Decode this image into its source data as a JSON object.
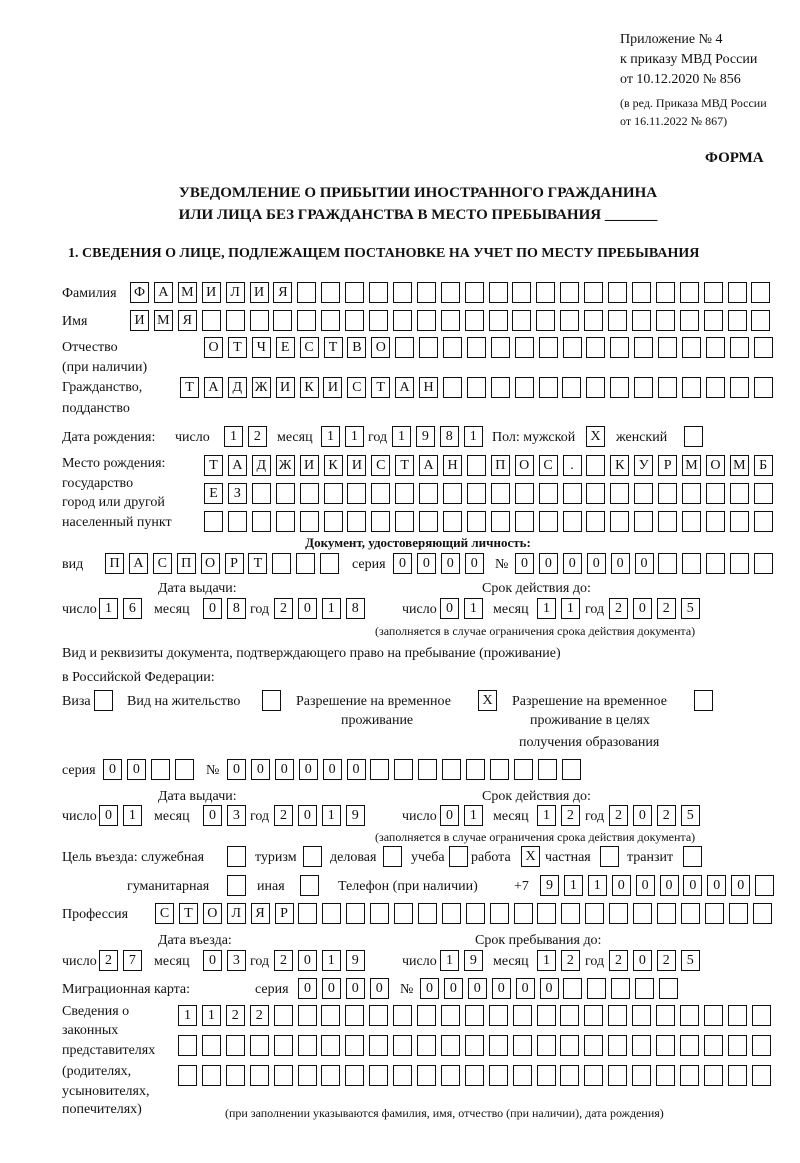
{
  "header": {
    "appendix": "Приложение № 4",
    "order": "к приказу МВД России",
    "order_date": "от 10.12.2020 № 856",
    "revision1": "(в ред. Приказа МВД России",
    "revision2": "от 16.11.2022 № 867)",
    "form_label": "ФОРМА",
    "title1": "УВЕДОМЛЕНИЕ О ПРИБЫТИИ ИНОСТРАННОГО ГРАЖДАНИНА",
    "title2": "ИЛИ ЛИЦА БЕЗ ГРАЖДАНСТВА В МЕСТО ПРЕБЫВАНИЯ _______"
  },
  "section1": {
    "heading": "1. СВЕДЕНИЯ О ЛИЦЕ, ПОДЛЕЖАЩЕМ ПОСТАНОВКЕ НА УЧЕТ ПО МЕСТУ ПРЕБЫВАНИЯ",
    "surname": {
      "label": "Фамилия",
      "cells": [
        "Ф",
        "А",
        "М",
        "И",
        "Л",
        "И",
        "Я",
        "",
        "",
        "",
        "",
        "",
        "",
        "",
        "",
        "",
        "",
        "",
        "",
        "",
        "",
        "",
        "",
        "",
        "",
        "",
        ""
      ]
    },
    "name": {
      "label": "Имя",
      "cells": [
        "И",
        "М",
        "Я",
        "",
        "",
        "",
        "",
        "",
        "",
        "",
        "",
        "",
        "",
        "",
        "",
        "",
        "",
        "",
        "",
        "",
        "",
        "",
        "",
        "",
        "",
        "",
        ""
      ]
    },
    "patronymic": {
      "label": "Отчество",
      "label2": "(при наличии)",
      "cells": [
        "О",
        "Т",
        "Ч",
        "Е",
        "С",
        "Т",
        "В",
        "О",
        "",
        "",
        "",
        "",
        "",
        "",
        "",
        "",
        "",
        "",
        "",
        "",
        "",
        "",
        "",
        ""
      ]
    },
    "citizenship": {
      "label": "Гражданство,",
      "label2": "подданство",
      "cells": [
        "Т",
        "А",
        "Д",
        "Ж",
        "И",
        "К",
        "И",
        "С",
        "Т",
        "А",
        "Н",
        "",
        "",
        "",
        "",
        "",
        "",
        "",
        "",
        "",
        "",
        "",
        "",
        "",
        ""
      ]
    },
    "birth_date": {
      "label": "Дата рождения:",
      "day_label": "число",
      "day": [
        "1",
        "2"
      ],
      "month_label": "месяц",
      "month": [
        "1",
        "1"
      ],
      "year_label": "год",
      "year": [
        "1",
        "9",
        "8",
        "1"
      ],
      "sex_label": "Пол: мужской",
      "male": [
        "X"
      ],
      "female_label": "женский",
      "female": [
        ""
      ]
    },
    "birth_place": {
      "label1": "Место рождения:",
      "label2": "государство",
      "label3": "город или другой",
      "label4": "населенный пункт",
      "row1": [
        "Т",
        "А",
        "Д",
        "Ж",
        "И",
        "К",
        "И",
        "С",
        "Т",
        "А",
        "Н",
        "",
        "П",
        "О",
        "С",
        ".",
        "",
        "К",
        "У",
        "Р",
        "М",
        "О",
        "М",
        "Б"
      ],
      "row2": [
        "Е",
        "З",
        "",
        "",
        "",
        "",
        "",
        "",
        "",
        "",
        "",
        "",
        "",
        "",
        "",
        "",
        "",
        "",
        "",
        "",
        "",
        "",
        "",
        ""
      ],
      "row3": [
        "",
        "",
        "",
        "",
        "",
        "",
        "",
        "",
        "",
        "",
        "",
        "",
        "",
        "",
        "",
        "",
        "",
        "",
        "",
        "",
        "",
        "",
        "",
        ""
      ]
    },
    "identity_doc": {
      "heading": "Документ, удостоверяющий личность:",
      "type_label": "вид",
      "type": [
        "П",
        "А",
        "С",
        "П",
        "О",
        "Р",
        "Т",
        "",
        "",
        ""
      ],
      "series_label": "серия",
      "series": [
        "0",
        "0",
        "0",
        "0"
      ],
      "number_label": "№",
      "number": [
        "0",
        "0",
        "0",
        "0",
        "0",
        "0",
        "",
        "",
        "",
        "",
        ""
      ],
      "issue_label": "Дата выдачи:",
      "valid_label": "Срок действия до:",
      "day_label": "число",
      "month_label": "месяц",
      "year_label": "год",
      "issue_day": [
        "1",
        "6"
      ],
      "issue_month": [
        "0",
        "8"
      ],
      "issue_year": [
        "2",
        "0",
        "1",
        "8"
      ],
      "valid_day": [
        "0",
        "1"
      ],
      "valid_month": [
        "1",
        "1"
      ],
      "valid_year": [
        "2",
        "0",
        "2",
        "5"
      ],
      "note": "(заполняется в случае ограничения срока действия документа)"
    },
    "stay_doc": {
      "label1": "Вид и реквизиты документа, подтверждающего право на пребывание (проживание)",
      "label2": "в Российской Федерации:",
      "visa_label": "Виза",
      "visa": [
        ""
      ],
      "residence_label": "Вид на жительство",
      "residence": [
        ""
      ],
      "temp_label1": "Разрешение на временное",
      "temp_label2": "проживание",
      "temp": [
        "X"
      ],
      "edu_label1": "Разрешение на временное",
      "edu_label2": "проживание в целях",
      "edu_label3": "получения образования",
      "edu": [
        ""
      ],
      "series_label": "серия",
      "series": [
        "0",
        "0",
        "",
        ""
      ],
      "number_label": "№",
      "number": [
        "0",
        "0",
        "0",
        "0",
        "0",
        "0",
        "",
        "",
        "",
        "",
        "",
        "",
        "",
        "",
        ""
      ],
      "issue_label": "Дата выдачи:",
      "valid_label": "Срок действия до:",
      "day_label": "число",
      "month_label": "месяц",
      "year_label": "год",
      "issue_day": [
        "0",
        "1"
      ],
      "issue_month": [
        "0",
        "3"
      ],
      "issue_year": [
        "2",
        "0",
        "1",
        "9"
      ],
      "valid_day": [
        "0",
        "1"
      ],
      "valid_month": [
        "1",
        "2"
      ],
      "valid_year": [
        "2",
        "0",
        "2",
        "5"
      ],
      "note": "(заполняется в случае ограничения срока действия документа)"
    },
    "purpose": {
      "label": "Цель въезда: служебная",
      "service": [
        ""
      ],
      "tourism_label": "туризм",
      "tourism": [
        ""
      ],
      "business_label": "деловая",
      "business": [
        ""
      ],
      "study_label": "учеба",
      "study": [
        ""
      ],
      "work_label": "работа",
      "work": [
        "X"
      ],
      "private_label": "частная",
      "private": [
        ""
      ],
      "transit_label": "транзит",
      "transit": [
        ""
      ],
      "humanitarian_label": "гуманитарная",
      "humanitarian": [
        ""
      ],
      "other_label": "иная",
      "other": [
        ""
      ],
      "phone_label": "Телефон (при наличии)",
      "phone_prefix": "+7",
      "phone": [
        "9",
        "1",
        "1",
        "0",
        "0",
        "0",
        "0",
        "0",
        "0",
        ""
      ]
    },
    "profession": {
      "label": "Профессия",
      "cells": [
        "С",
        "Т",
        "О",
        "Л",
        "Я",
        "Р",
        "",
        "",
        "",
        "",
        "",
        "",
        "",
        "",
        "",
        "",
        "",
        "",
        "",
        "",
        "",
        "",
        "",
        "",
        "",
        ""
      ]
    },
    "entry": {
      "entry_label": "Дата въезда:",
      "stay_label": "Срок пребывания до:",
      "day_label": "число",
      "month_label": "месяц",
      "year_label": "год",
      "entry_day": [
        "2",
        "7"
      ],
      "entry_month": [
        "0",
        "3"
      ],
      "entry_year": [
        "2",
        "0",
        "1",
        "9"
      ],
      "stay_day": [
        "1",
        "9"
      ],
      "stay_month": [
        "1",
        "2"
      ],
      "stay_year": [
        "2",
        "0",
        "2",
        "5"
      ]
    },
    "migration_card": {
      "label": "Миграционная карта:",
      "series_label": "серия",
      "series": [
        "0",
        "0",
        "0",
        "0"
      ],
      "number_label": "№",
      "number": [
        "0",
        "0",
        "0",
        "0",
        "0",
        "0",
        "",
        "",
        "",
        "",
        ""
      ]
    },
    "representatives": {
      "label1": "Сведения о",
      "label2": "законных",
      "label3": "представителях",
      "label4": "(родителях,",
      "label5": "усыновителях,",
      "label6": "попечителях)",
      "row1": [
        "1",
        "1",
        "2",
        "2",
        "",
        "",
        "",
        "",
        "",
        "",
        "",
        "",
        "",
        "",
        "",
        "",
        "",
        "",
        "",
        "",
        "",
        "",
        "",
        "",
        ""
      ],
      "row2": [
        "",
        "",
        "",
        "",
        "",
        "",
        "",
        "",
        "",
        "",
        "",
        "",
        "",
        "",
        "",
        "",
        "",
        "",
        "",
        "",
        "",
        "",
        "",
        "",
        ""
      ],
      "row3": [
        "",
        "",
        "",
        "",
        "",
        "",
        "",
        "",
        "",
        "",
        "",
        "",
        "",
        "",
        "",
        "",
        "",
        "",
        "",
        "",
        "",
        "",
        "",
        "",
        ""
      ],
      "note": "(при заполнении указываются фамилия, имя, отчество (при наличии), дата рождения)"
    }
  }
}
